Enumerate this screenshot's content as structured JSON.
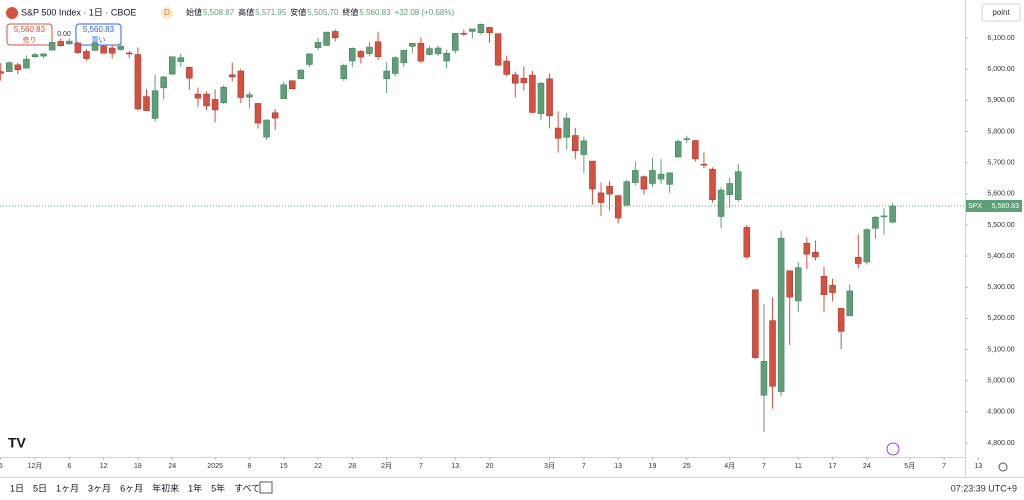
{
  "chart_data": {
    "type": "candlestick",
    "title": "S&P 500 Index · 1日 · CBOE",
    "interval_badge": "D",
    "ohlc_legend": {
      "open_label": "始値",
      "open": "5,508.87",
      "high_label": "高値",
      "high": "5,571.95",
      "low_label": "安値",
      "low": "5,505.70",
      "close_label": "終値",
      "close": "5,560.83",
      "change": "+32.08 (+0.58%)"
    },
    "sell_button": {
      "price": "5,560.83",
      "label": "売り"
    },
    "spread": "0.00",
    "buy_button": {
      "price": "5,560.83",
      "label": "買い"
    },
    "axis_unit": "point",
    "symbol_tag": "SPX",
    "last_price_label": "5,560.83",
    "categories": [
      "5",
      null,
      null,
      null,
      "12月",
      null,
      null,
      null,
      "6",
      null,
      null,
      null,
      "12",
      null,
      null,
      null,
      "18",
      null,
      null,
      null,
      "24",
      null,
      null,
      null,
      null,
      "2025",
      null,
      null,
      null,
      "8",
      null,
      null,
      null,
      "15",
      null,
      null,
      null,
      "22",
      null,
      null,
      null,
      "28",
      null,
      null,
      null,
      "2月",
      null,
      null,
      null,
      "7",
      null,
      null,
      null,
      "13",
      null,
      null,
      null,
      "20",
      null,
      null,
      null,
      null,
      null,
      null,
      "3月",
      null,
      null,
      null,
      "7",
      null,
      null,
      null,
      "13",
      null,
      null,
      null,
      "19",
      null,
      null,
      null,
      "25",
      null,
      null,
      null,
      null,
      "4月",
      null,
      null,
      null,
      "7",
      null,
      null,
      null,
      "11",
      null,
      null,
      null,
      "17",
      null,
      null,
      null,
      "24",
      null,
      null,
      null,
      null,
      "5月",
      null,
      null,
      null,
      "7",
      null,
      null,
      null,
      "13"
    ],
    "open": [
      5992,
      5992,
      6014,
      6003,
      6040,
      6042,
      6061,
      6089,
      6081,
      6084,
      6057,
      6060,
      6074,
      6068,
      6063,
      6052,
      6047,
      5912,
      5842,
      5940,
      5984,
      6024,
      6006,
      5920,
      5920,
      5903,
      5892,
      5982,
      5994,
      5910,
      5890,
      5782,
      5860,
      5905,
      5963,
      5969,
      6015,
      6069,
      6076,
      6121,
      5969,
      6026,
      6057,
      6050,
      6088,
      5969,
      5986,
      6021,
      6073,
      6083,
      6047,
      6049,
      6026,
      6060,
      6115,
      6121,
      6117,
      6134,
      6114,
      6026,
      5982,
      5971,
      5981,
      5857,
      5969,
      5811,
      5781,
      5787,
      5726,
      5705,
      5603,
      5624,
      5594,
      5563,
      5636,
      5655,
      5633,
      5647,
      5630,
      5718,
      5776,
      5771,
      5695,
      5679,
      5527,
      5597,
      5581,
      5492,
      5292,
      4953,
      5193,
      4965,
      5353,
      5256,
      5441,
      5412,
      5335,
      5306,
      5232,
      5208,
      5396,
      5381,
      5489,
      5529,
      5508.87,
      null,
      null,
      null,
      null,
      null,
      null,
      null,
      null,
      null,
      null
    ],
    "high": [
      6020,
      6025,
      6020,
      6044,
      6053,
      6052,
      6089,
      6099,
      6099,
      6089,
      6065,
      6092,
      6079,
      6079,
      6085,
      6058,
      6070,
      5935,
      5982,
      5978,
      6040,
      6049,
      6006,
      5941,
      5929,
      5935,
      5949,
      6021,
      6001,
      5928,
      5890,
      5837,
      5872,
      5960,
      5964,
      6000,
      6051,
      6100,
      6119,
      6128,
      6018,
      6070,
      6062,
      6087,
      6120,
      6022,
      6042,
      6062,
      6084,
      6101,
      6074,
      6076,
      6063,
      6116,
      6127,
      6129,
      6147,
      6134,
      6115,
      6044,
      5992,
      6009,
      5994,
      5959,
      5986,
      5865,
      5860,
      5812,
      5783,
      5705,
      5636,
      5641,
      5597,
      5645,
      5704,
      5659,
      5715,
      5711,
      5670,
      5775,
      5786,
      5772,
      5733,
      5685,
      5621,
      5651,
      5696,
      5500,
      5292,
      5246,
      5267,
      5481,
      5353,
      5381,
      5460,
      5450,
      5367,
      5328,
      5232,
      5309,
      5470,
      5489,
      5528,
      5554,
      5571.95,
      null,
      null,
      null,
      null,
      null,
      null,
      null,
      null,
      null,
      null
    ],
    "low": [
      5963,
      5992,
      5984,
      6003,
      6035,
      6034,
      6061,
      6075,
      6079,
      6048,
      6027,
      6060,
      6051,
      6034,
      6060,
      6035,
      5867,
      5866,
      5832,
      5903,
      5981,
      6007,
      5933,
      5878,
      5868,
      5829,
      5888,
      5960,
      5891,
      5874,
      5809,
      5773,
      5805,
      5905,
      5937,
      5969,
      6007,
      6062,
      6075,
      6089,
      5962,
      6006,
      6018,
      6041,
      6030,
      5924,
      5978,
      6007,
      6052,
      6020,
      6044,
      6043,
      6004,
      6050,
      6107,
      6099,
      6111,
      6084,
      6009,
      5977,
      5909,
      5932,
      5858,
      5837,
      5810,
      5732,
      5742,
      5711,
      5667,
      5565,
      5529,
      5546,
      5505,
      5563,
      5628,
      5597,
      5622,
      5632,
      5603,
      5716,
      5764,
      5703,
      5682,
      5572,
      5489,
      5555,
      5574,
      5391,
      5070,
      4835,
      4910,
      4950,
      5115,
      5220,
      5358,
      5386,
      5220,
      5255,
      5101,
      5208,
      5360,
      5372,
      5456,
      5469,
      5505.7,
      null,
      null,
      null,
      null,
      null,
      null,
      null,
      null,
      null,
      null
    ],
    "close": [
      5987,
      6021,
      5998,
      6032,
      6047,
      6049,
      6086,
      6075,
      6090,
      6053,
      6034,
      6084,
      6051,
      6051,
      6074,
      6050,
      5872,
      5867,
      5931,
      5975,
      6040,
      6037,
      5971,
      5907,
      5882,
      5869,
      5942,
      5975,
      5909,
      5918,
      5827,
      5837,
      5843,
      5950,
      5937,
      5997,
      6049,
      6086,
      6119,
      6101,
      6012,
      6067,
      6039,
      6071,
      6040,
      5994,
      6037,
      6061,
      6083,
      6026,
      6066,
      6068,
      6051,
      6115,
      6114,
      6129,
      6144,
      6117,
      6013,
      5983,
      5955,
      5956,
      5861,
      5955,
      5850,
      5778,
      5843,
      5738,
      5770,
      5615,
      5572,
      5599,
      5522,
      5639,
      5675,
      5615,
      5675,
      5663,
      5667,
      5768,
      5777,
      5712,
      5693,
      5581,
      5612,
      5633,
      5671,
      5397,
      5074,
      5062,
      4982,
      5457,
      5268,
      5363,
      5406,
      5397,
      5276,
      5283,
      5158,
      5288,
      5376,
      5485,
      5525,
      5529,
      5560.83,
      null,
      null,
      null,
      null,
      null,
      null,
      null,
      null,
      null,
      null
    ],
    "up_color": "#5e9e78",
    "down_color": "#d4503f",
    "ylim": [
      4755,
      6222
    ],
    "yticks": [
      {
        "value": 4800,
        "label": "4,800.00"
      },
      {
        "value": 4900,
        "label": "4,900.00"
      },
      {
        "value": 5000,
        "label": "5,000.00"
      },
      {
        "value": 5100,
        "label": "5,100.00"
      },
      {
        "value": 5200,
        "label": "5,200.00"
      },
      {
        "value": 5300,
        "label": "5,300.00"
      },
      {
        "value": 5400,
        "label": "5,400.00"
      },
      {
        "value": 5500,
        "label": "5,500.00"
      },
      {
        "value": 5600,
        "label": "5,600.00"
      },
      {
        "value": 5700,
        "label": "5,700.00"
      },
      {
        "value": 5800,
        "label": "5,800.00"
      },
      {
        "value": 5900,
        "label": "5,900.00"
      },
      {
        "value": 6000,
        "label": "6,000.00"
      },
      {
        "value": 6100,
        "label": "6,100.00"
      }
    ],
    "ranges": [
      "1日",
      "5日",
      "1ヶ月",
      "3ヶ月",
      "6ヶ月",
      "年初来",
      "1年",
      "5年",
      "すべて"
    ],
    "clock": "07:23:39 UTC+9"
  }
}
